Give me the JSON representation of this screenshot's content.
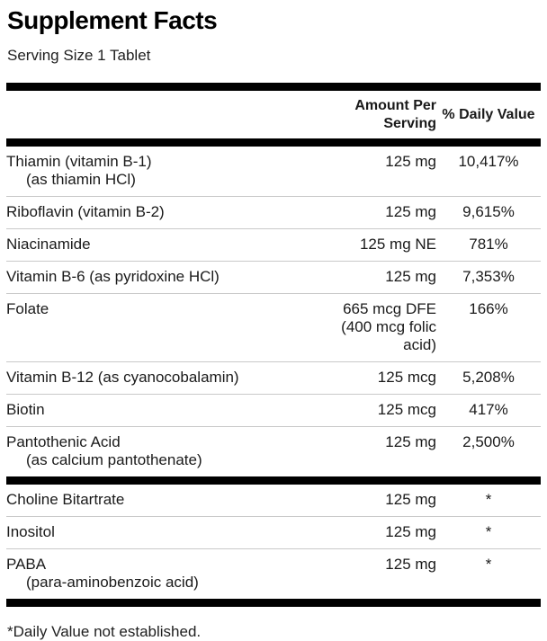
{
  "title": "Supplement Facts",
  "serving_size": "Serving Size 1 Tablet",
  "header": {
    "amount_line1": "Amount Per",
    "amount_line2": "Serving",
    "daily_value": "% Daily Value"
  },
  "table": {
    "sections": [
      {
        "rows": [
          {
            "name": "Thiamin (vitamin B-1)",
            "sub": "(as thiamin HCl)",
            "amount": "125 mg",
            "dv": "10,417%"
          },
          {
            "name": "Riboflavin (vitamin B-2)",
            "sub": "",
            "amount": "125 mg",
            "dv": "9,615%"
          },
          {
            "name": "Niacinamide",
            "sub": "",
            "amount": "125 mg NE",
            "dv": "781%"
          },
          {
            "name": "Vitamin B-6 (as pyridoxine HCl)",
            "sub": "",
            "amount": "125 mg",
            "dv": "7,353%"
          },
          {
            "name": "Folate",
            "sub": "",
            "amount": "665 mcg DFE (400 mcg folic acid)",
            "dv": "166%"
          },
          {
            "name": "Vitamin B-12 (as cyanocobalamin)",
            "sub": "",
            "amount": "125 mcg",
            "dv": "5,208%"
          },
          {
            "name": "Biotin",
            "sub": "",
            "amount": "125 mcg",
            "dv": "417%"
          },
          {
            "name": "Pantothenic Acid",
            "sub": "(as calcium pantothenate)",
            "amount": "125 mg",
            "dv": "2,500%"
          }
        ]
      },
      {
        "rows": [
          {
            "name": "Choline Bitartrate",
            "sub": "",
            "amount": "125 mg",
            "dv": "*"
          },
          {
            "name": "Inositol",
            "sub": "",
            "amount": "125 mg",
            "dv": "*"
          },
          {
            "name": "PABA",
            "sub": "(para-aminobenzoic acid)",
            "amount": "125 mg",
            "dv": "*"
          }
        ]
      }
    ]
  },
  "footnote": "*Daily Value not established.",
  "colors": {
    "text": "#1a1a1a",
    "bar": "#000000",
    "separator": "#c9c9c9",
    "background": "#ffffff"
  }
}
